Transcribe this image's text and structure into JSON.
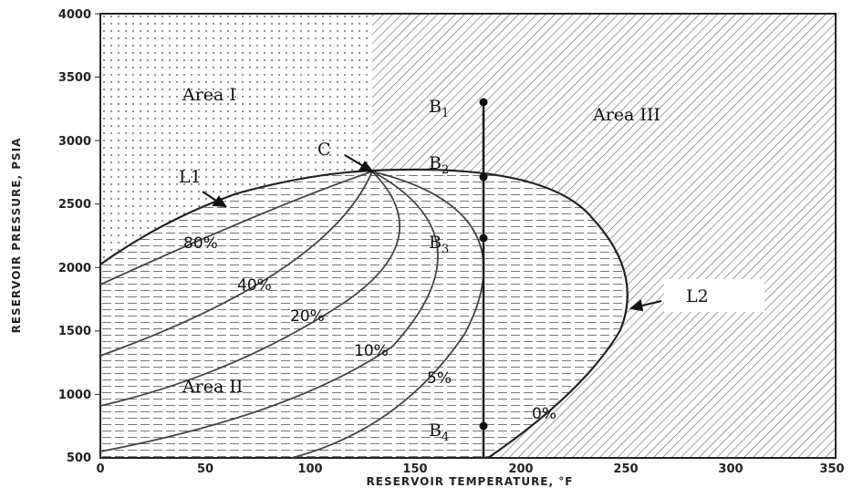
{
  "axes": {
    "x_title": "RESERVOIR  TEMPERATURE,  °F",
    "y_title": "RESERVOIR PRESSURE,  PSIA",
    "x_ticks": [
      "0",
      "50",
      "100",
      "150",
      "200",
      "250",
      "300",
      "350"
    ],
    "y_ticks": [
      "500",
      "1000",
      "1500",
      "2000",
      "2500",
      "3000",
      "3500",
      "4000"
    ],
    "x_range": [
      0,
      350
    ],
    "y_range": [
      500,
      4000
    ]
  },
  "regions": {
    "area1": "Area I",
    "area2": "Area II",
    "area3": "Area III"
  },
  "curves": {
    "l1": "L1",
    "l2": "L2",
    "critical_point": "C"
  },
  "quality_lines": [
    "80%",
    "40%",
    "20%",
    "10%",
    "5%",
    "0%"
  ],
  "path_points": {
    "b1": {
      "letter": "B",
      "sub": "1",
      "temperature": 180,
      "pressure": 3300
    },
    "b2": {
      "letter": "B",
      "sub": "2",
      "temperature": 180,
      "pressure": 2700
    },
    "b3": {
      "letter": "B",
      "sub": "3",
      "temperature": 180,
      "pressure": 2200
    },
    "b4": {
      "letter": "B",
      "sub": "4",
      "temperature": 180,
      "pressure": 725
    }
  },
  "colors": {
    "ink": "#222222",
    "hatch": "#555555",
    "dots": "#444444"
  }
}
